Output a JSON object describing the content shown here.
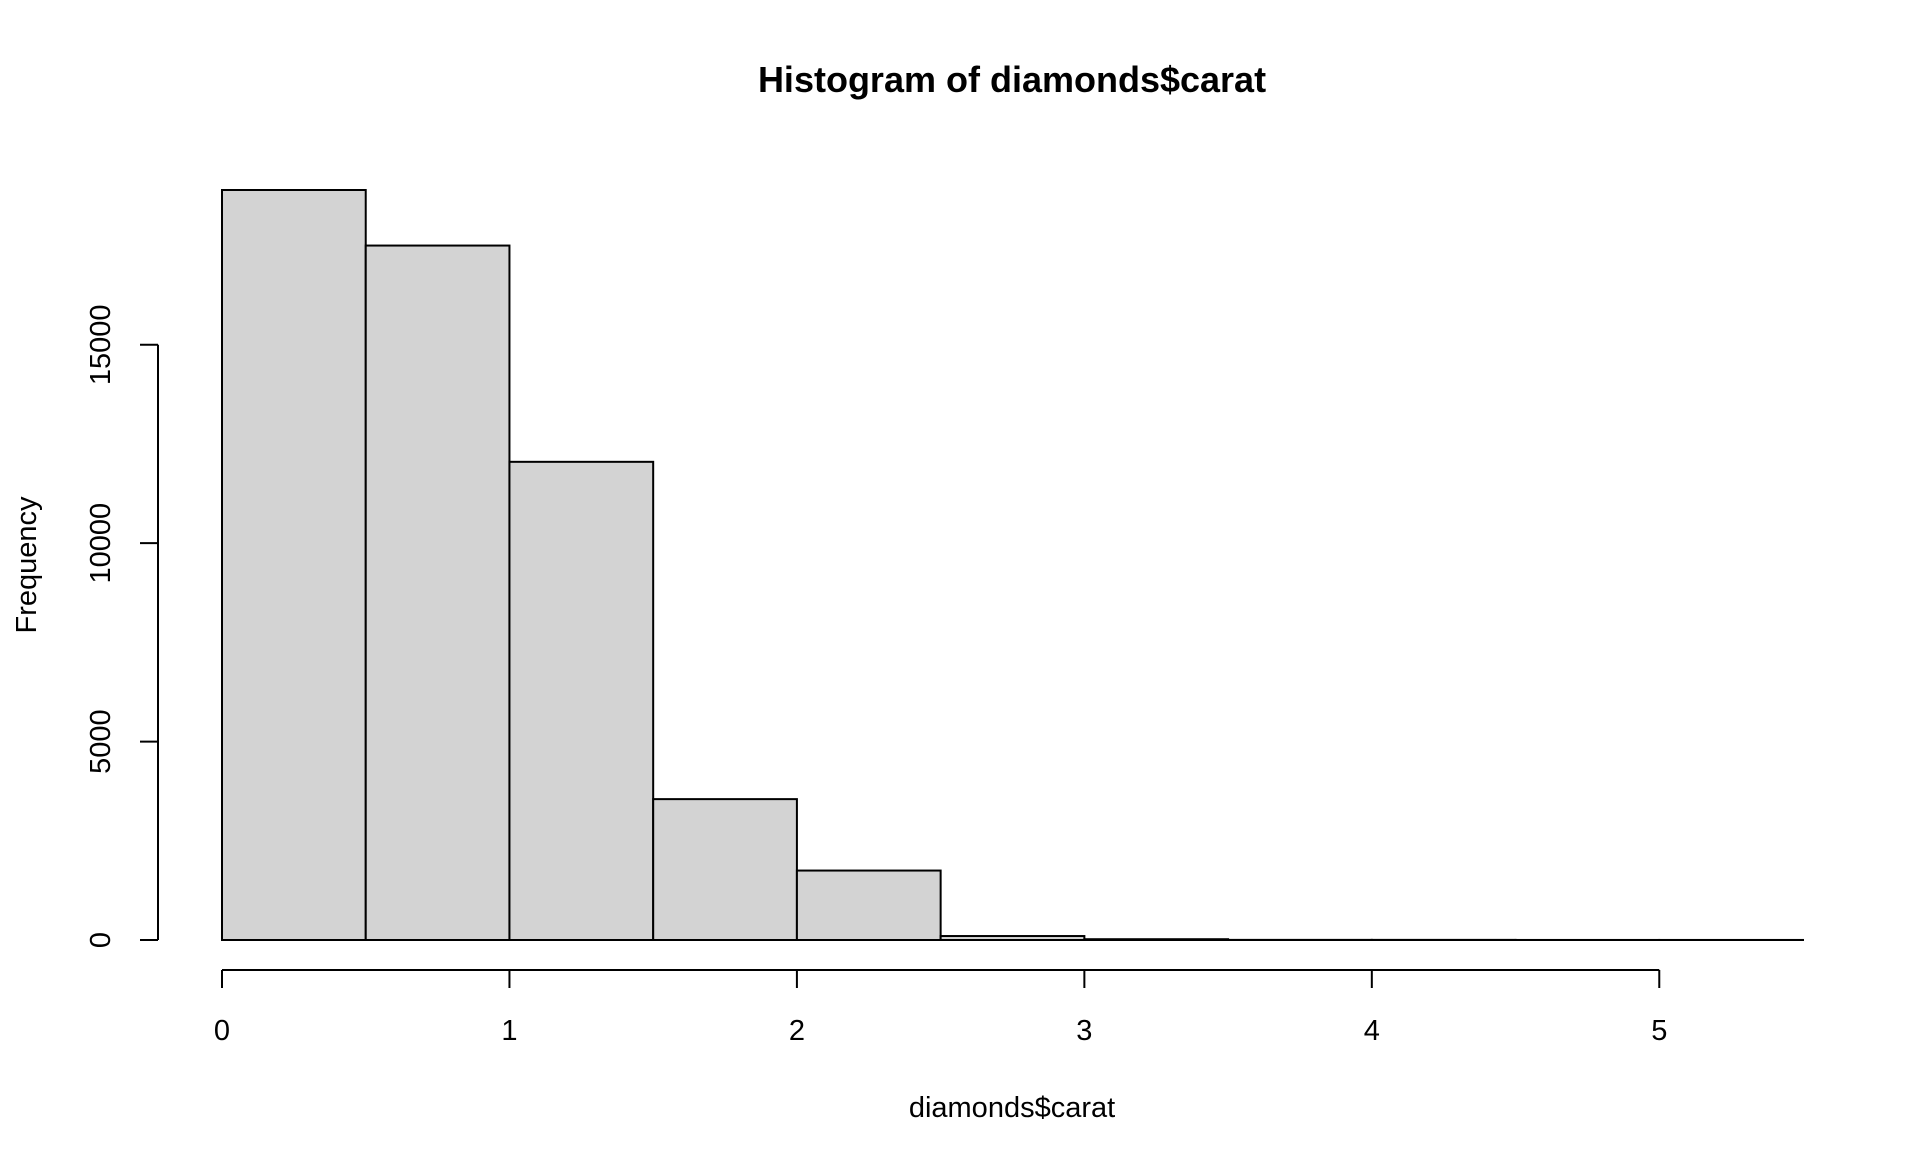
{
  "chart_data": {
    "type": "bar",
    "histogram": true,
    "title": "Histogram of diamonds$carat",
    "xlabel": "diamonds$carat",
    "ylabel": "Frequency",
    "bins": [
      {
        "x0": 0.0,
        "x1": 0.5,
        "count": 18900
      },
      {
        "x0": 0.5,
        "x1": 1.0,
        "count": 17500
      },
      {
        "x0": 1.0,
        "x1": 1.5,
        "count": 12050
      },
      {
        "x0": 1.5,
        "x1": 2.0,
        "count": 3550
      },
      {
        "x0": 2.0,
        "x1": 2.5,
        "count": 1750
      },
      {
        "x0": 2.5,
        "x1": 3.0,
        "count": 100
      },
      {
        "x0": 3.0,
        "x1": 3.5,
        "count": 20
      },
      {
        "x0": 3.5,
        "x1": 4.0,
        "count": 3
      },
      {
        "x0": 4.0,
        "x1": 4.5,
        "count": 3
      },
      {
        "x0": 4.5,
        "x1": 5.0,
        "count": 1
      },
      {
        "x0": 5.0,
        "x1": 5.5,
        "count": 1
      }
    ],
    "xlim": [
      0,
      5.5
    ],
    "ylim": [
      0,
      18900
    ],
    "xticks": [
      0,
      1,
      2,
      3,
      4,
      5
    ],
    "xtick_labels": [
      "0",
      "1",
      "2",
      "3",
      "4",
      "5"
    ],
    "yticks": [
      0,
      5000,
      10000,
      15000
    ],
    "ytick_labels": [
      "0",
      "5000",
      "10000",
      "15000"
    ],
    "bar_fill": "#d3d3d3",
    "bar_stroke": "#000000",
    "grid": false,
    "legend": "none"
  }
}
